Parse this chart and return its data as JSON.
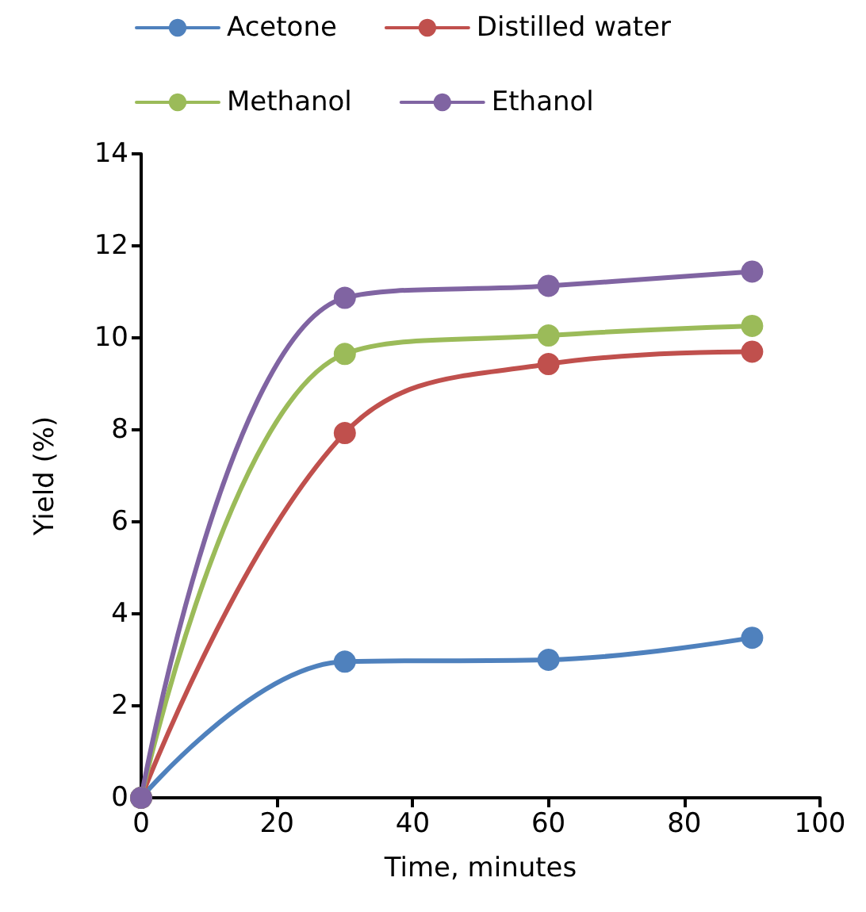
{
  "chart_data": {
    "type": "line",
    "xlabel": "Time, minutes",
    "ylabel": "Yield (%)",
    "x": [
      0,
      30,
      60,
      90
    ],
    "series": [
      {
        "name": "Acetone",
        "color": "#4f81bd",
        "values": [
          0,
          2.96,
          3.0,
          3.48
        ]
      },
      {
        "name": "Distilled water",
        "color": "#c0504d",
        "values": [
          0,
          7.93,
          9.43,
          9.7
        ]
      },
      {
        "name": "Methanol",
        "color": "#9bbb59",
        "values": [
          0,
          9.65,
          10.05,
          10.26
        ]
      },
      {
        "name": "Ethanol",
        "color": "#8064a2",
        "values": [
          0,
          10.87,
          11.13,
          11.44
        ]
      }
    ],
    "xlim": [
      0,
      100
    ],
    "xticks": [
      0,
      20,
      40,
      60,
      80,
      100
    ],
    "ylim": [
      0,
      14
    ],
    "yticks": [
      0,
      2,
      4,
      6,
      8,
      10,
      12,
      14
    ],
    "grid": false,
    "legend": "top",
    "marker": "circle",
    "line_style": "solid"
  }
}
